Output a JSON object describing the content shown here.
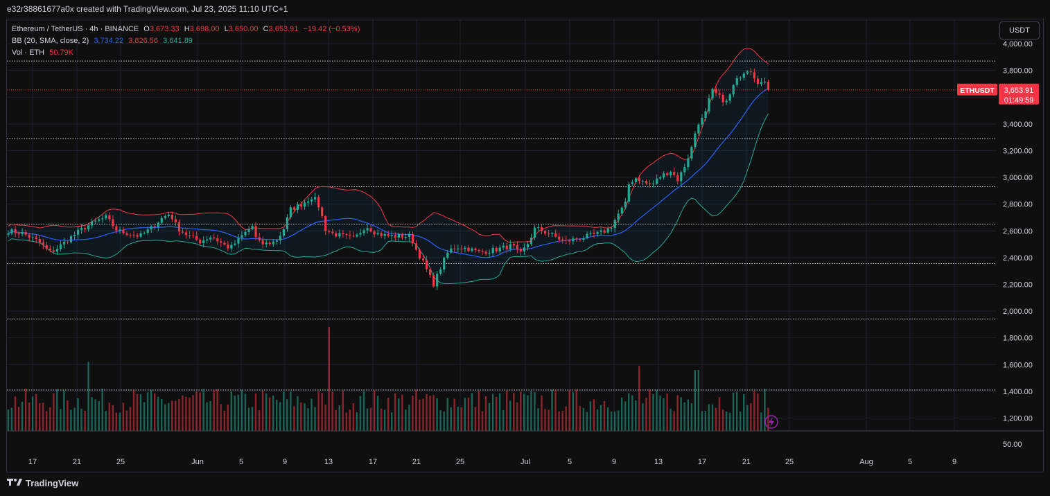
{
  "caption": "e32r38861677a0x created with TradingView.com, Jul 23, 2025 11:10 UTC+1",
  "legend": {
    "symbol": "Ethereum / TetherUS · 4h · BINANCE",
    "open_label": "O",
    "open": "3,673.33",
    "high_label": "H",
    "high": "3,698.00",
    "low_label": "L",
    "low": "3,650.00",
    "close_label": "C",
    "close": "3,653.91",
    "change": "−19.42 (−0.53%)",
    "bb_label": "BB (20, SMA, close, 2)",
    "bb_basis": "3,734.22",
    "bb_upper": "3,826.56",
    "bb_lower": "3,641.89",
    "vol_label": "Vol · ETH",
    "vol_value": "50.79K"
  },
  "currency_button": "USDT",
  "price_badge": {
    "symbol": "ETHUSDT",
    "price": "3,653.91",
    "countdown": "01:49:59"
  },
  "footer": {
    "brand": "TradingView"
  },
  "colors": {
    "up": "#22ab94",
    "down": "#f23645",
    "basis": "#2962ff",
    "upper": "#f23645",
    "lower": "#22ab94",
    "background": "#0f0f0f",
    "grid": "#1e222d"
  },
  "chart_data": {
    "type": "candlestick",
    "title": "Ethereum / TetherUS · 4h · BINANCE",
    "y_ticks": [
      "4,000.00",
      "3,800.00",
      "3,600.00",
      "3,400.00",
      "3,200.00",
      "3,000.00",
      "2,800.00",
      "2,600.00",
      "2,400.00",
      "2,200.00",
      "2,000.00",
      "1,800.00",
      "1,600.00",
      "1,400.00",
      "1,200.00"
    ],
    "y_tick_values": [
      4000,
      3800,
      3600,
      3400,
      3200,
      3000,
      2800,
      2600,
      2400,
      2200,
      2000,
      1800,
      1600,
      1400,
      1200
    ],
    "ylim": [
      1100,
      4100
    ],
    "volume_tick": "50.00",
    "x_ticks": [
      "17",
      "21",
      "25",
      "Jun",
      "5",
      "9",
      "13",
      "17",
      "21",
      "25",
      "Jul",
      "5",
      "9",
      "13",
      "17",
      "21",
      "25",
      "Aug",
      "5",
      "9"
    ],
    "horizontal_levels": [
      3870,
      3290,
      2930,
      2650,
      2355,
      1940,
      1410
    ],
    "last_price": 3653.91,
    "close_path": [
      [
        0,
        2600
      ],
      [
        4,
        2580
      ],
      [
        8,
        2520
      ],
      [
        11,
        2440
      ],
      [
        13,
        2470
      ],
      [
        17,
        2560
      ],
      [
        20,
        2620
      ],
      [
        24,
        2680
      ],
      [
        26,
        2700
      ],
      [
        29,
        2600
      ],
      [
        32,
        2580
      ],
      [
        35,
        2560
      ],
      [
        38,
        2620
      ],
      [
        41,
        2700
      ],
      [
        43,
        2730
      ],
      [
        45,
        2620
      ],
      [
        48,
        2560
      ],
      [
        51,
        2520
      ],
      [
        54,
        2560
      ],
      [
        57,
        2500
      ],
      [
        59,
        2470
      ],
      [
        62,
        2560
      ],
      [
        65,
        2640
      ],
      [
        66,
        2520
      ],
      [
        68,
        2500
      ],
      [
        71,
        2520
      ],
      [
        73,
        2600
      ],
      [
        75,
        2760
      ],
      [
        78,
        2800
      ],
      [
        81,
        2860
      ],
      [
        83,
        2760
      ],
      [
        84,
        2620
      ],
      [
        86,
        2580
      ],
      [
        89,
        2560
      ],
      [
        92,
        2540
      ],
      [
        95,
        2640
      ],
      [
        98,
        2580
      ],
      [
        101,
        2560
      ],
      [
        104,
        2560
      ],
      [
        107,
        2560
      ],
      [
        108,
        2480
      ],
      [
        110,
        2380
      ],
      [
        112,
        2260
      ],
      [
        113,
        2200
      ],
      [
        115,
        2330
      ],
      [
        117,
        2450
      ],
      [
        119,
        2480
      ],
      [
        122,
        2470
      ],
      [
        125,
        2440
      ],
      [
        128,
        2450
      ],
      [
        131,
        2470
      ],
      [
        134,
        2490
      ],
      [
        136,
        2420
      ],
      [
        138,
        2500
      ],
      [
        140,
        2620
      ],
      [
        142,
        2600
      ],
      [
        145,
        2560
      ],
      [
        148,
        2520
      ],
      [
        151,
        2540
      ],
      [
        154,
        2560
      ],
      [
        157,
        2580
      ],
      [
        160,
        2620
      ],
      [
        162,
        2720
      ],
      [
        164,
        2800
      ],
      [
        165,
        2960
      ],
      [
        167,
        3000
      ],
      [
        169,
        2960
      ],
      [
        171,
        2940
      ],
      [
        173,
        3000
      ],
      [
        176,
        3050
      ],
      [
        178,
        2980
      ],
      [
        180,
        3100
      ],
      [
        182,
        3250
      ],
      [
        183,
        3400
      ],
      [
        185,
        3450
      ],
      [
        187,
        3650
      ],
      [
        189,
        3600
      ],
      [
        191,
        3560
      ],
      [
        193,
        3700
      ],
      [
        195,
        3780
      ],
      [
        197,
        3820
      ],
      [
        199,
        3720
      ],
      [
        201,
        3700
      ],
      [
        202,
        3654
      ]
    ],
    "volume_spikes": [
      [
        21,
        1620
      ],
      [
        85,
        1880
      ],
      [
        168,
        1590
      ],
      [
        183,
        1560
      ]
    ]
  }
}
